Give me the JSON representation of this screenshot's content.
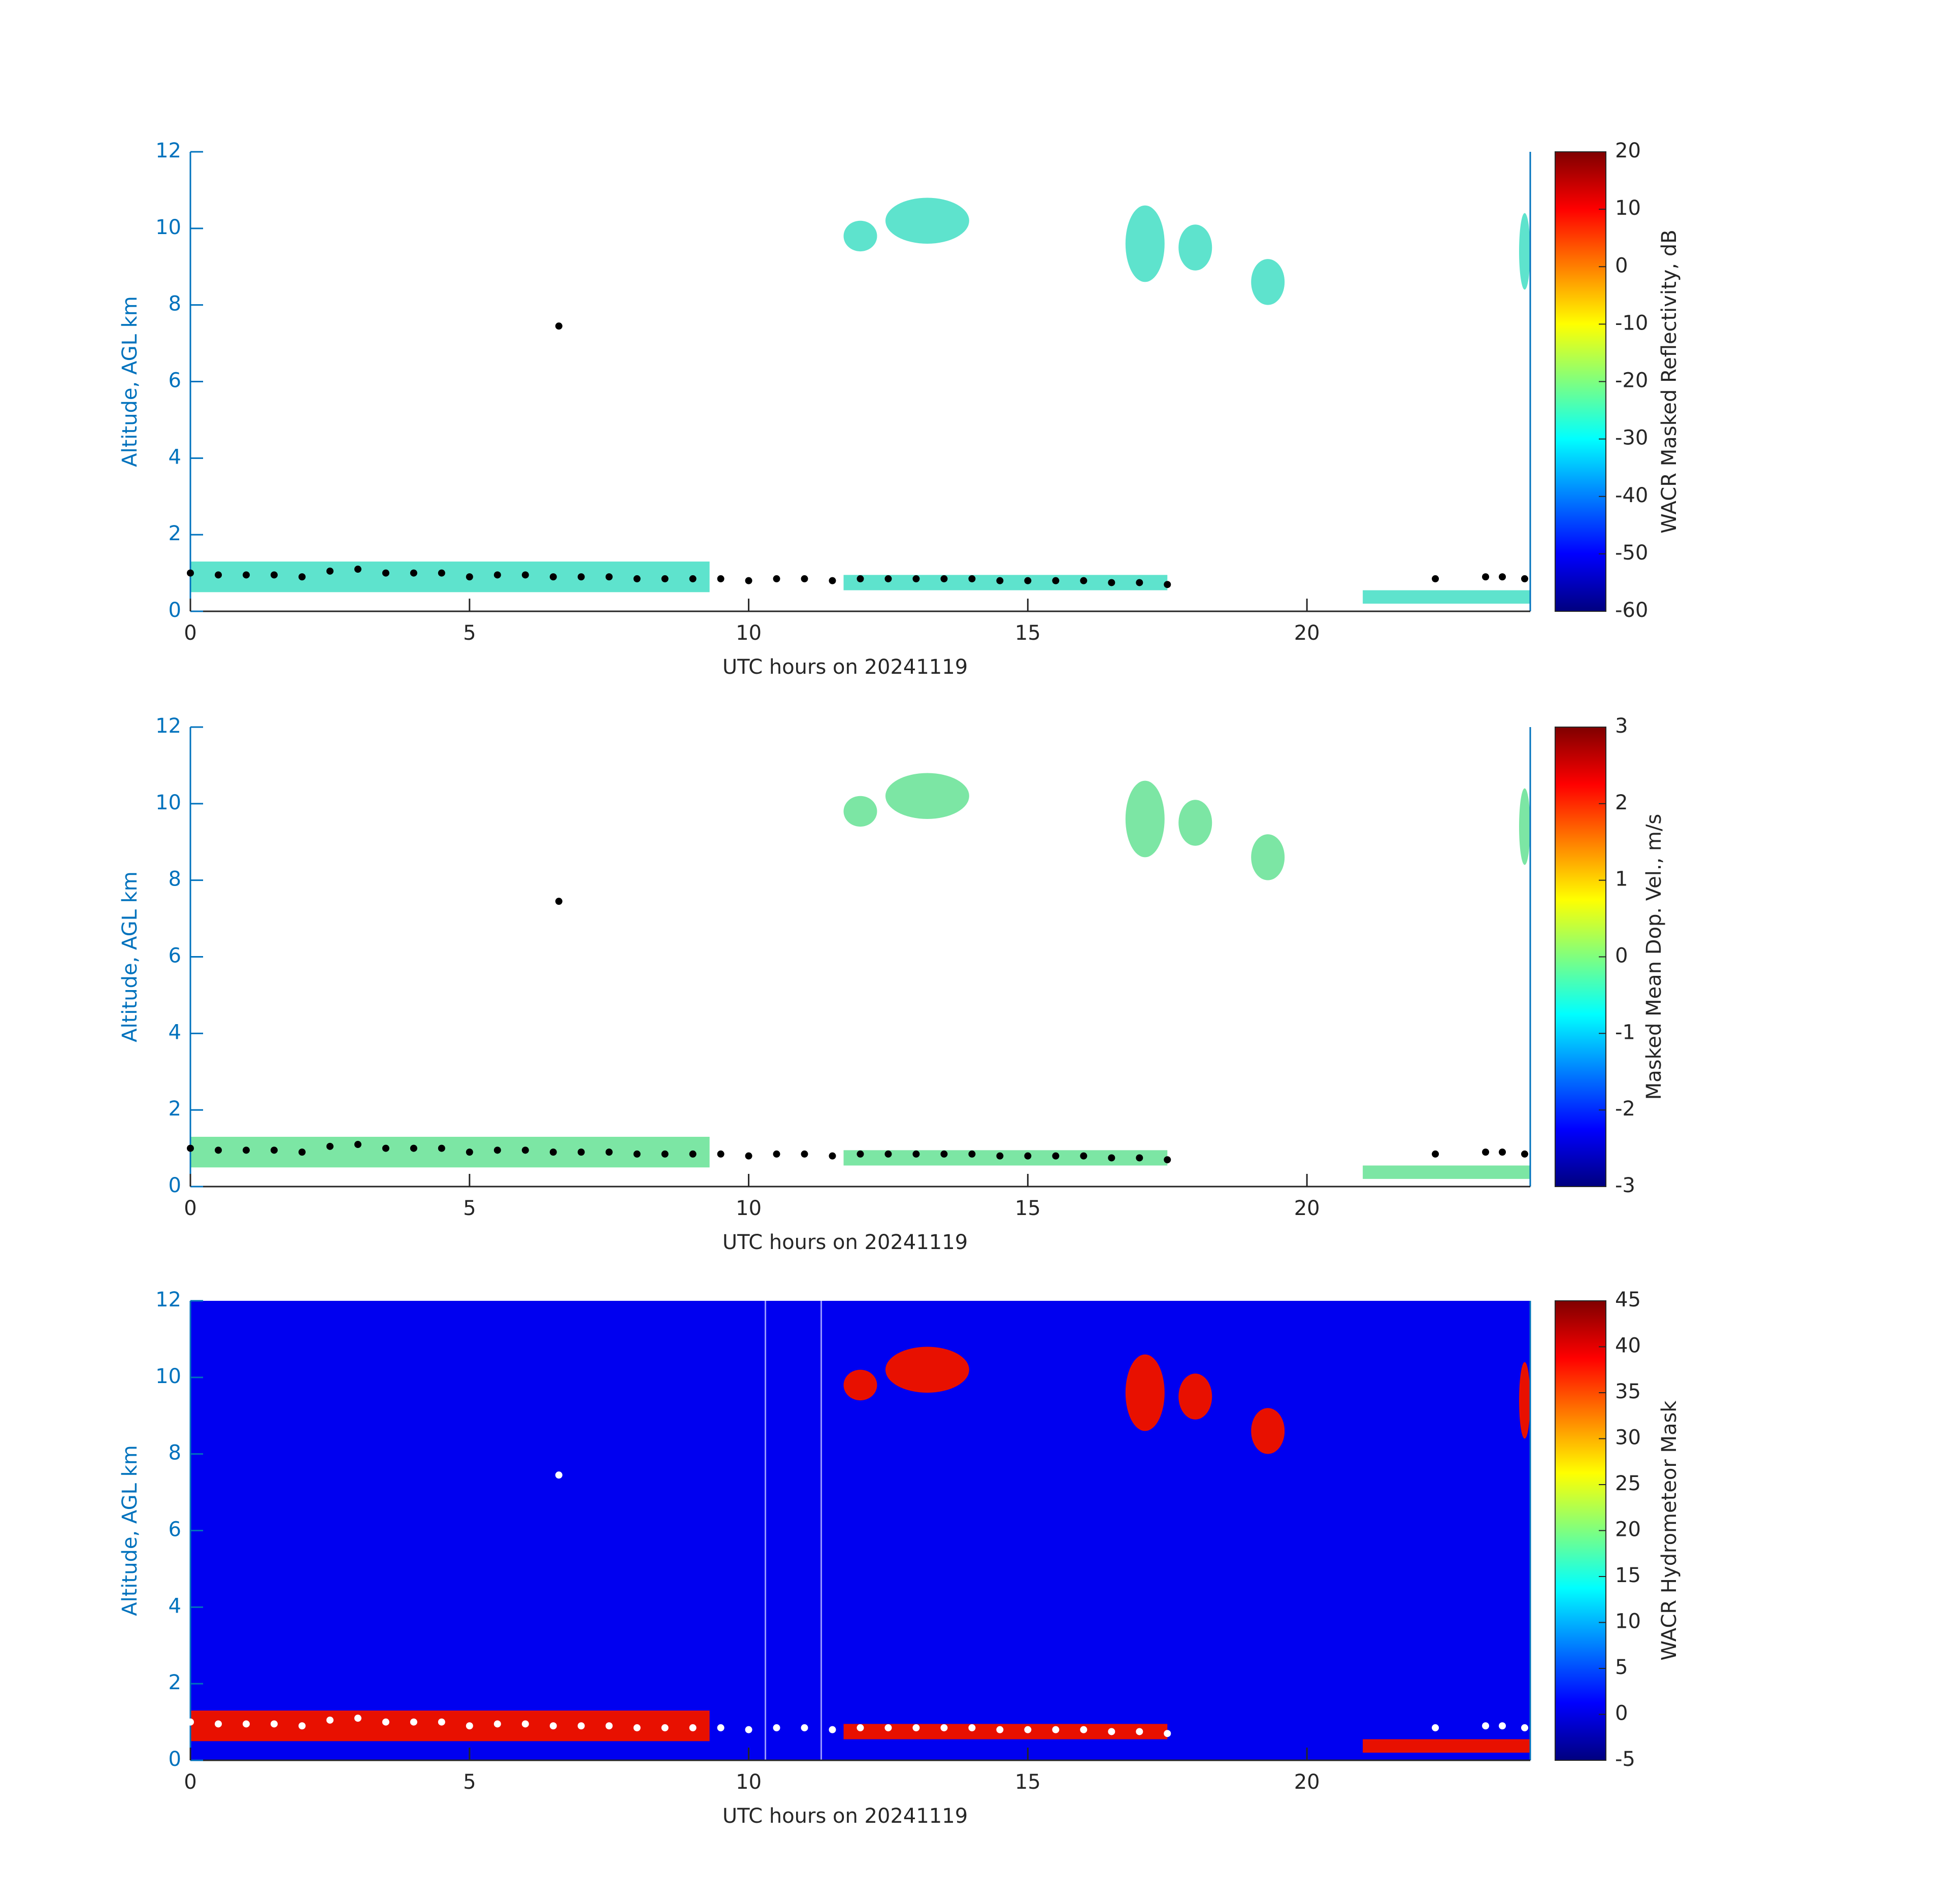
{
  "chart_data": [
    {
      "type": "heatmap",
      "xlabel": "UTC hours on 20241119",
      "ylabel": "Altitude, AGL km",
      "colorbar_label": "WACR Masked Reflectivity, dB",
      "xlim": [
        0,
        24
      ],
      "xticks": [
        0,
        5,
        10,
        15,
        20
      ],
      "ylim": [
        0,
        12
      ],
      "yticks": [
        0,
        2,
        4,
        6,
        8,
        10,
        12
      ],
      "clim": [
        -60,
        20
      ],
      "cticks": [
        -60,
        -50,
        -40,
        -30,
        -20,
        -10,
        0,
        10,
        20
      ],
      "series": [
        {
          "color": "#000000",
          "x": [
            0,
            0.5,
            1,
            1.5,
            2,
            2.5,
            3,
            3.5,
            4,
            4.5,
            5,
            5.5,
            6,
            6.5,
            7,
            7.5,
            8,
            8.5,
            9,
            9.5,
            10,
            10.5,
            11,
            11.5,
            12,
            12.5,
            13,
            13.5,
            14,
            14.5,
            15,
            15.5,
            16,
            16.5,
            17,
            17.5,
            6.6,
            22.3,
            23.2,
            23.5,
            23.9
          ],
          "values": [
            1.0,
            0.95,
            0.95,
            0.95,
            0.9,
            1.05,
            1.1,
            1.0,
            1.0,
            1.0,
            0.9,
            0.95,
            0.95,
            0.9,
            0.9,
            0.9,
            0.85,
            0.85,
            0.85,
            0.85,
            0.8,
            0.85,
            0.85,
            0.8,
            0.85,
            0.85,
            0.85,
            0.85,
            0.85,
            0.8,
            0.8,
            0.8,
            0.8,
            0.75,
            0.75,
            0.7,
            7.45,
            0.85,
            0.9,
            0.9,
            0.85
          ]
        }
      ]
    },
    {
      "type": "heatmap",
      "xlabel": "UTC hours on 20241119",
      "ylabel": "Altitude, AGL km",
      "colorbar_label": "Masked Mean Dop. Vel., m/s",
      "xlim": [
        0,
        24
      ],
      "xticks": [
        0,
        5,
        10,
        15,
        20
      ],
      "ylim": [
        0,
        12
      ],
      "yticks": [
        0,
        2,
        4,
        6,
        8,
        10,
        12
      ],
      "clim": [
        -3,
        3
      ],
      "cticks": [
        -3,
        -2,
        -1,
        0,
        1,
        2,
        3
      ],
      "series": [
        {
          "color": "#000000",
          "x": [
            0,
            0.5,
            1,
            1.5,
            2,
            2.5,
            3,
            3.5,
            4,
            4.5,
            5,
            5.5,
            6,
            6.5,
            7,
            7.5,
            8,
            8.5,
            9,
            9.5,
            10,
            10.5,
            11,
            11.5,
            12,
            12.5,
            13,
            13.5,
            14,
            14.5,
            15,
            15.5,
            16,
            16.5,
            17,
            17.5,
            6.6,
            22.3,
            23.2,
            23.5,
            23.9
          ],
          "values": [
            1.0,
            0.95,
            0.95,
            0.95,
            0.9,
            1.05,
            1.1,
            1.0,
            1.0,
            1.0,
            0.9,
            0.95,
            0.95,
            0.9,
            0.9,
            0.9,
            0.85,
            0.85,
            0.85,
            0.85,
            0.8,
            0.85,
            0.85,
            0.8,
            0.85,
            0.85,
            0.85,
            0.85,
            0.85,
            0.8,
            0.8,
            0.8,
            0.8,
            0.75,
            0.75,
            0.7,
            7.45,
            0.85,
            0.9,
            0.9,
            0.85
          ]
        }
      ]
    },
    {
      "type": "heatmap",
      "xlabel": "UTC hours on 20241119",
      "ylabel": "Altitude, AGL km",
      "colorbar_label": "WACR Hydrometeor Mask",
      "xlim": [
        0,
        24
      ],
      "xticks": [
        0,
        5,
        10,
        15,
        20
      ],
      "ylim": [
        0,
        12
      ],
      "yticks": [
        0,
        2,
        4,
        6,
        8,
        10,
        12
      ],
      "clim": [
        -5,
        45
      ],
      "cticks": [
        -5,
        0,
        5,
        10,
        15,
        20,
        25,
        30,
        35,
        40,
        45
      ],
      "series": [
        {
          "color": "#ffffff",
          "x": [
            0,
            0.5,
            1,
            1.5,
            2,
            2.5,
            3,
            3.5,
            4,
            4.5,
            5,
            5.5,
            6,
            6.5,
            7,
            7.5,
            8,
            8.5,
            9,
            9.5,
            10,
            10.5,
            11,
            11.5,
            12,
            12.5,
            13,
            13.5,
            14,
            14.5,
            15,
            15.5,
            16,
            16.5,
            17,
            17.5,
            6.6,
            22.3,
            23.2,
            23.5,
            23.9
          ],
          "values": [
            1.0,
            0.95,
            0.95,
            0.95,
            0.9,
            1.05,
            1.1,
            1.0,
            1.0,
            1.0,
            0.9,
            0.95,
            0.95,
            0.9,
            0.9,
            0.9,
            0.85,
            0.85,
            0.85,
            0.85,
            0.8,
            0.85,
            0.85,
            0.8,
            0.85,
            0.85,
            0.85,
            0.85,
            0.85,
            0.8,
            0.8,
            0.8,
            0.8,
            0.75,
            0.75,
            0.7,
            7.45,
            0.85,
            0.9,
            0.9,
            0.85
          ]
        }
      ]
    }
  ]
}
